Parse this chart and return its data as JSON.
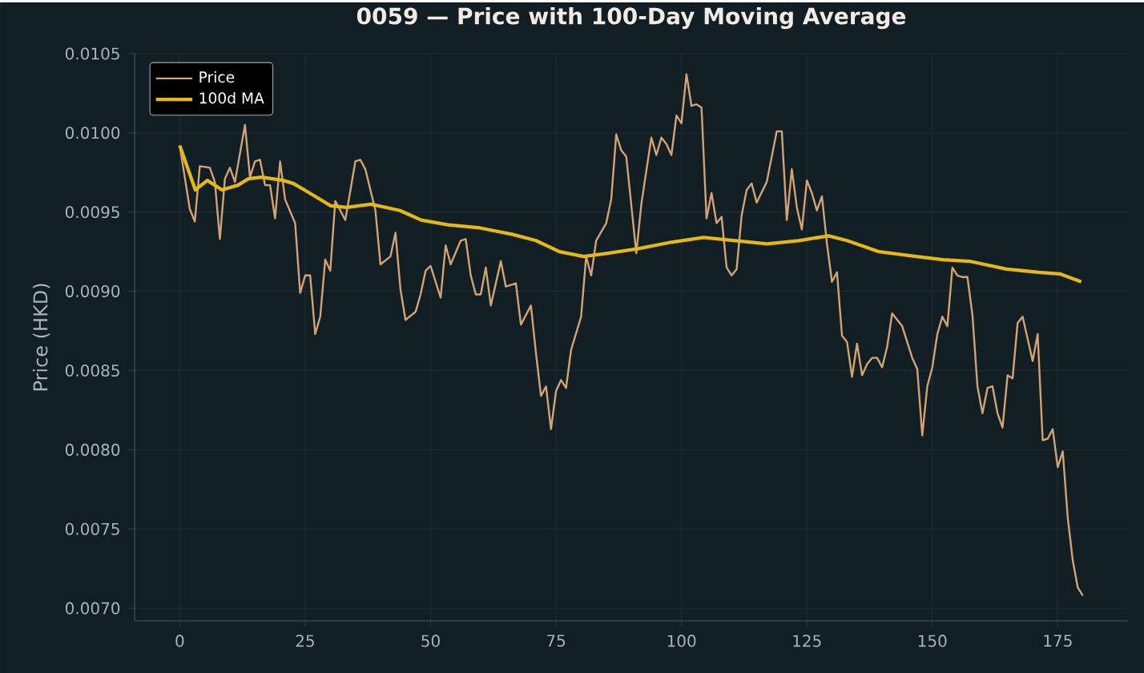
{
  "chart_data": {
    "type": "line",
    "title": "0059 — Price with 100-Day Moving Average",
    "ylabel": "Price (HKD)",
    "xlim": [
      -9,
      189
    ],
    "ylim": [
      0.00692,
      0.0105
    ],
    "xticks": [
      0,
      25,
      50,
      75,
      100,
      125,
      150,
      175
    ],
    "yticks": [
      {
        "value": 0.007,
        "label": "0.0070"
      },
      {
        "value": 0.0075,
        "label": "0.0075"
      },
      {
        "value": 0.008,
        "label": "0.0080"
      },
      {
        "value": 0.0085,
        "label": "0.0085"
      },
      {
        "value": 0.009,
        "label": "0.0090"
      },
      {
        "value": 0.0095,
        "label": "0.0095"
      },
      {
        "value": 0.01,
        "label": "0.0100"
      },
      {
        "value": 0.0105,
        "label": "0.0105"
      }
    ],
    "grid": true,
    "legend": "top left",
    "marker": "none",
    "line_style": "solid",
    "series": [
      {
        "name": "Price",
        "color": "#d4a373",
        "x": [
          0,
          2,
          3,
          4,
          6,
          7,
          8,
          9,
          10,
          11,
          13,
          14,
          15,
          16,
          17,
          18,
          19,
          20,
          21,
          23,
          24,
          25,
          26,
          27,
          28,
          29,
          30,
          31,
          32,
          33,
          35,
          36,
          37,
          39,
          40,
          42,
          43,
          44,
          45,
          47,
          48,
          49,
          50,
          52,
          53,
          54,
          56,
          57,
          58,
          59,
          60,
          61,
          62,
          64,
          65,
          67,
          68,
          70,
          71,
          72,
          73,
          74,
          75,
          76,
          77,
          78,
          80,
          81,
          82,
          83,
          85,
          86,
          87,
          88,
          89,
          91,
          92,
          94,
          95,
          96,
          97,
          98,
          99,
          100,
          101,
          102,
          103,
          104,
          105,
          106,
          107,
          108,
          109,
          110,
          111,
          112,
          113,
          114,
          115,
          117,
          119,
          120,
          121,
          122,
          123,
          124,
          125,
          126,
          127,
          128,
          129,
          130,
          131,
          132,
          133,
          134,
          135,
          136,
          137,
          138,
          139,
          140,
          141,
          142,
          144,
          145,
          146,
          147,
          148,
          149,
          150,
          151,
          152,
          153,
          154,
          155,
          156,
          157,
          158,
          159,
          160,
          161,
          162,
          163,
          164,
          165,
          166,
          167,
          168,
          169,
          170,
          171,
          172,
          173,
          174,
          175,
          176,
          177,
          178,
          179,
          180
        ],
        "values": [
          0.00992,
          0.00952,
          0.00944,
          0.00979,
          0.00978,
          0.00969,
          0.00933,
          0.00971,
          0.00978,
          0.00969,
          0.01005,
          0.00972,
          0.00982,
          0.00983,
          0.00967,
          0.00967,
          0.00946,
          0.00982,
          0.00958,
          0.00943,
          0.00899,
          0.0091,
          0.0091,
          0.00873,
          0.00884,
          0.0092,
          0.00913,
          0.00957,
          0.00951,
          0.00945,
          0.00982,
          0.00983,
          0.00977,
          0.00951,
          0.00917,
          0.00922,
          0.00937,
          0.00901,
          0.00882,
          0.00887,
          0.00898,
          0.00913,
          0.00916,
          0.00896,
          0.00929,
          0.00917,
          0.00932,
          0.00933,
          0.0091,
          0.00898,
          0.00898,
          0.00915,
          0.00891,
          0.00919,
          0.00903,
          0.00905,
          0.00879,
          0.00891,
          0.00861,
          0.00834,
          0.0084,
          0.00813,
          0.00837,
          0.00844,
          0.00839,
          0.00863,
          0.00884,
          0.00922,
          0.0091,
          0.00932,
          0.00943,
          0.00958,
          0.00999,
          0.00989,
          0.00985,
          0.00924,
          0.00955,
          0.00997,
          0.00986,
          0.00997,
          0.00993,
          0.00986,
          0.01011,
          0.01006,
          0.01037,
          0.01017,
          0.01018,
          0.01016,
          0.00946,
          0.00962,
          0.00943,
          0.00947,
          0.00915,
          0.0091,
          0.00914,
          0.00948,
          0.00964,
          0.00968,
          0.00956,
          0.00969,
          0.01001,
          0.01001,
          0.00945,
          0.00977,
          0.00953,
          0.00939,
          0.0097,
          0.00962,
          0.00951,
          0.0096,
          0.0093,
          0.00906,
          0.00912,
          0.00872,
          0.00868,
          0.00846,
          0.00867,
          0.00847,
          0.00854,
          0.00858,
          0.00858,
          0.00852,
          0.00865,
          0.00886,
          0.00878,
          0.00868,
          0.00858,
          0.00851,
          0.00809,
          0.0084,
          0.00852,
          0.00873,
          0.00884,
          0.00878,
          0.00915,
          0.0091,
          0.00909,
          0.00909,
          0.00885,
          0.0084,
          0.00823,
          0.00839,
          0.0084,
          0.00823,
          0.00814,
          0.00847,
          0.00845,
          0.0088,
          0.00884,
          0.0087,
          0.00856,
          0.00873,
          0.00806,
          0.00807,
          0.00813,
          0.00789,
          0.00799,
          0.00757,
          0.0073,
          0.00713,
          0.00708
        ]
      },
      {
        "name": "100d MA",
        "color": "#e5b814",
        "x": [
          0,
          3.1,
          5.5,
          8.4,
          11.6,
          13.7,
          16.3,
          20.6,
          22.7,
          25.9,
          30.1,
          33.3,
          38.1,
          43.9,
          48.1,
          53.5,
          59.8,
          66.2,
          71,
          75.7,
          80.5,
          85.3,
          91.6,
          98,
          104.4,
          110.7,
          117.1,
          123.4,
          129.3,
          133,
          139.4,
          146.8,
          152.1,
          157.4,
          164.8,
          171.2,
          175.4,
          179.7
        ],
        "values": [
          0.00992,
          0.00964,
          0.0097,
          0.00964,
          0.00967,
          0.00971,
          0.00972,
          0.0097,
          0.00968,
          0.00962,
          0.00954,
          0.00953,
          0.00955,
          0.00951,
          0.00945,
          0.00942,
          0.0094,
          0.00936,
          0.00932,
          0.00925,
          0.00922,
          0.00924,
          0.00927,
          0.00931,
          0.00934,
          0.00932,
          0.0093,
          0.00932,
          0.00935,
          0.00932,
          0.00925,
          0.00922,
          0.0092,
          0.00919,
          0.00914,
          0.00912,
          0.00911,
          0.00906
        ]
      }
    ]
  }
}
